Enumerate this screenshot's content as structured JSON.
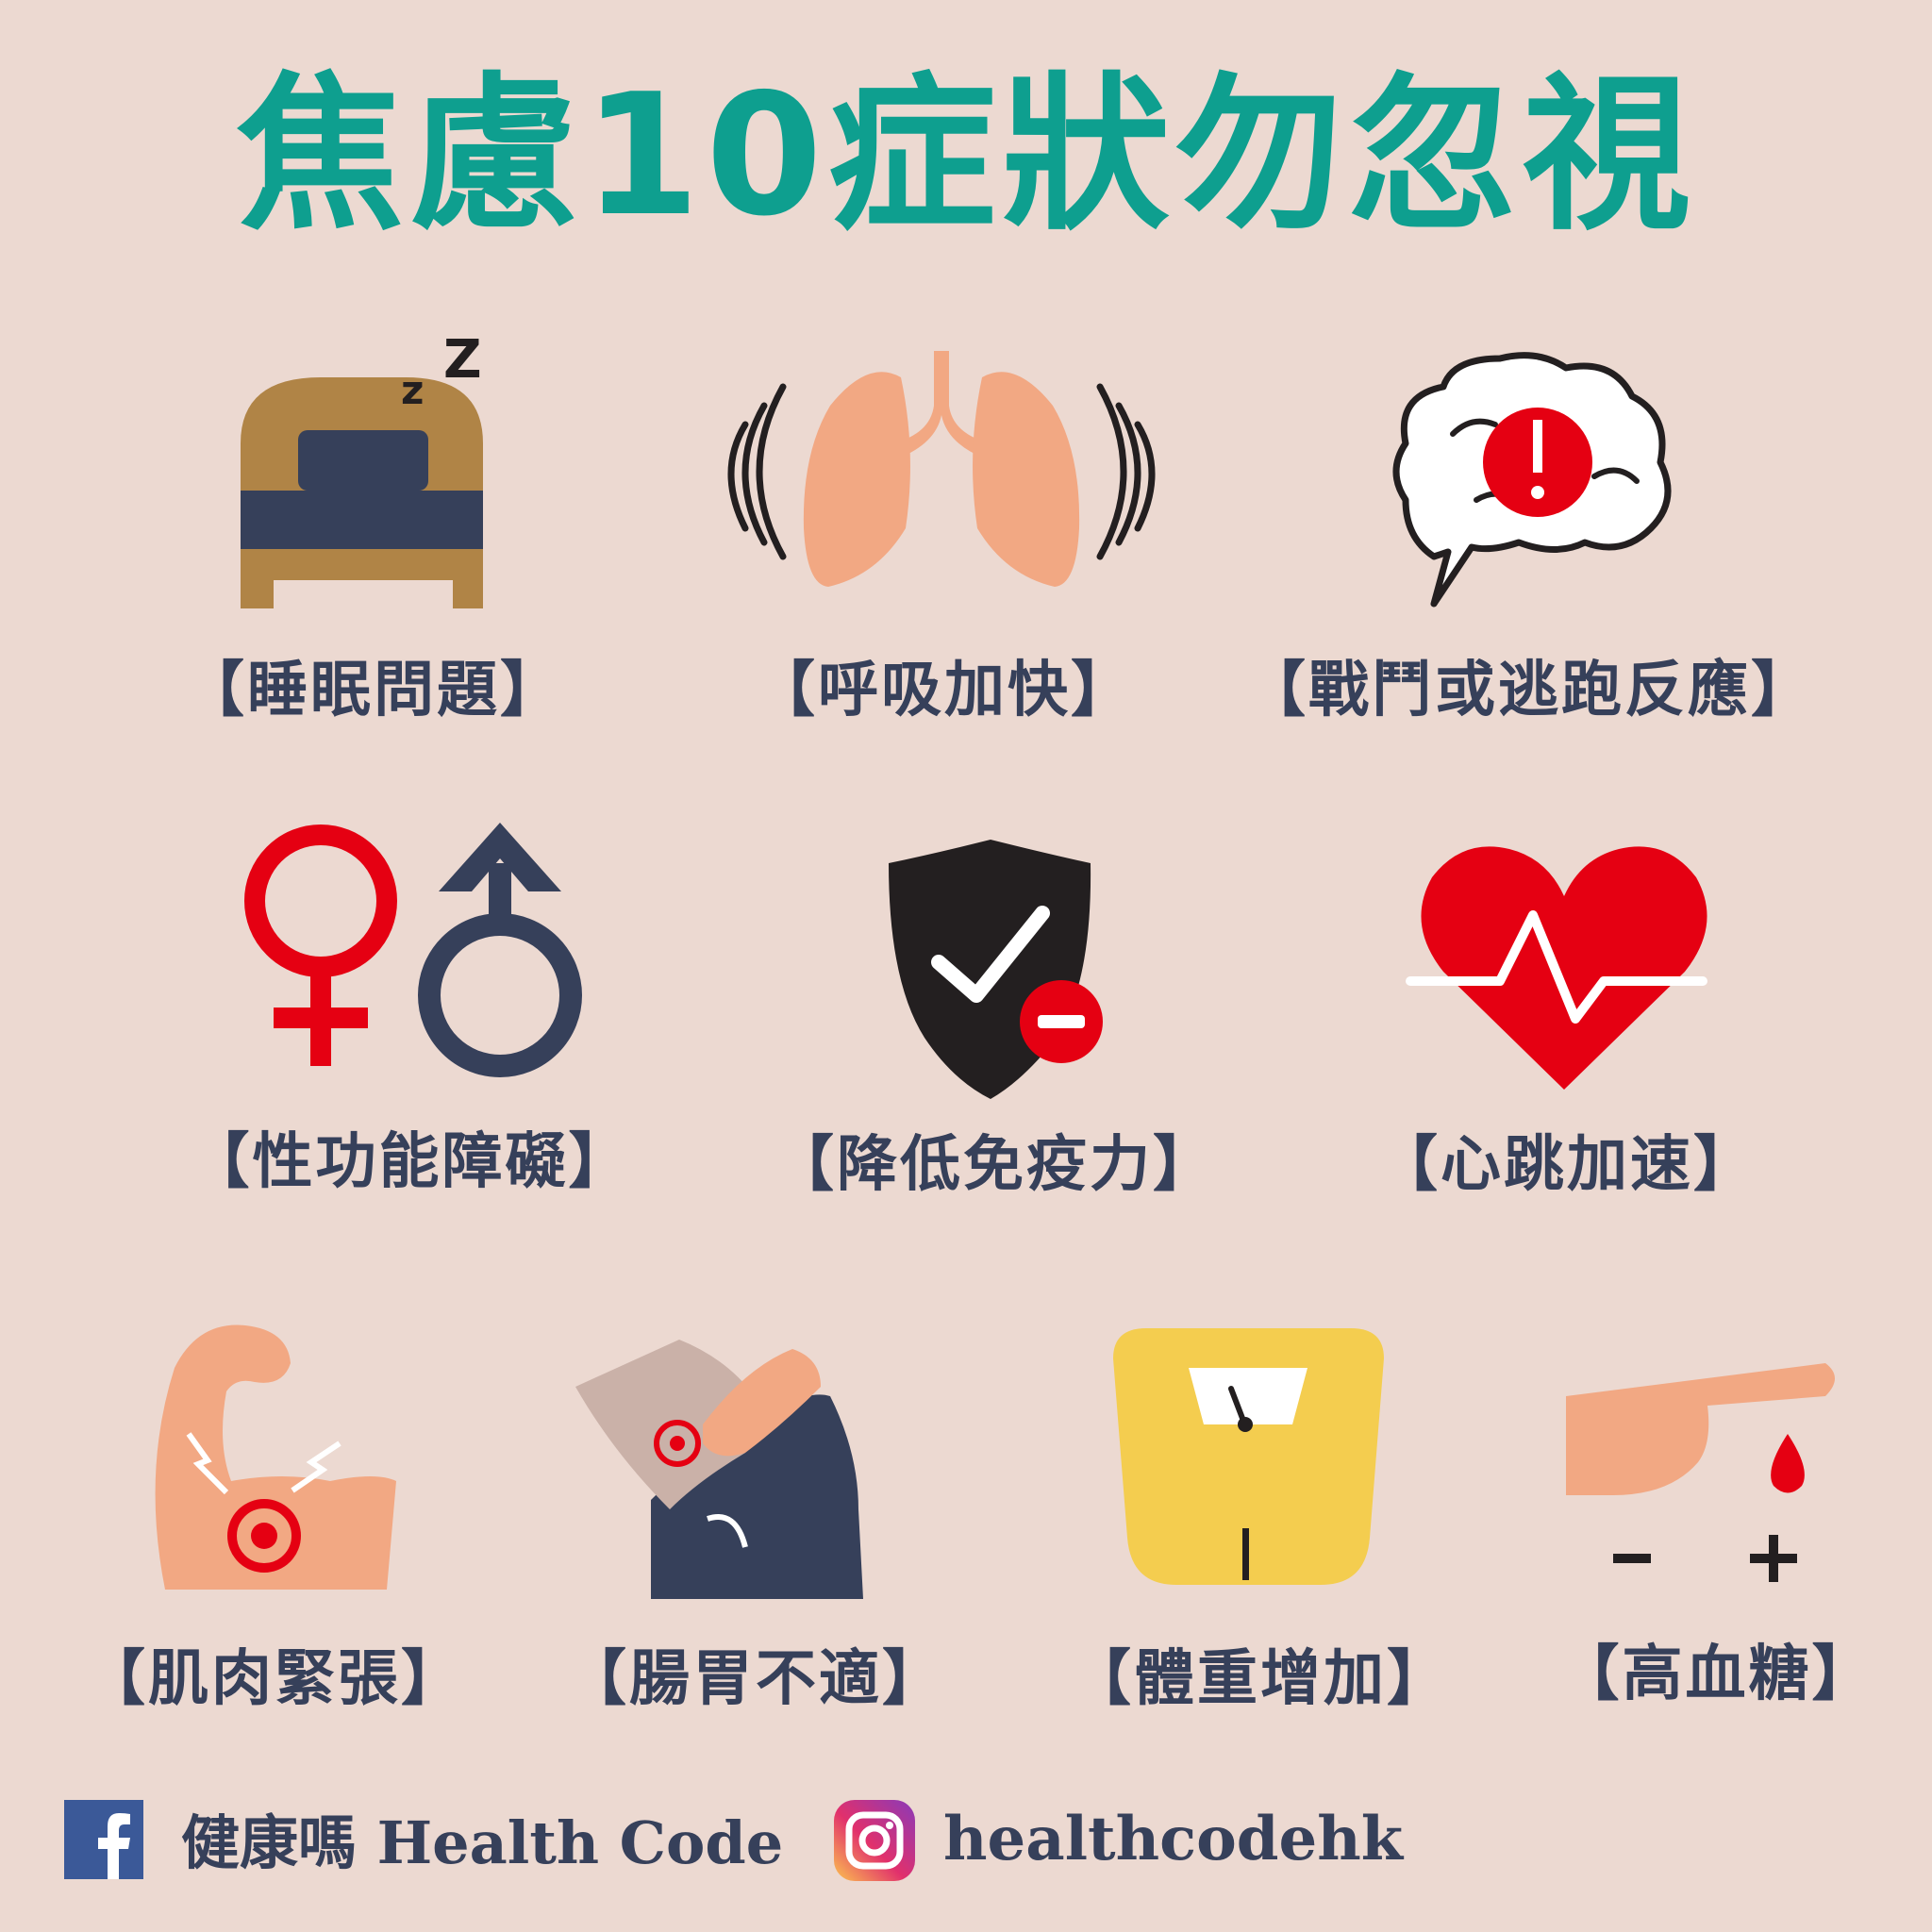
{
  "title": "焦慮10症狀勿忽視",
  "symptoms": [
    {
      "label": "【睡眠問題】",
      "icon": "bed-sleep-icon"
    },
    {
      "label": "【呼吸加快】",
      "icon": "lungs-icon"
    },
    {
      "label": "【戰鬥或逃跑反應】",
      "icon": "brain-alert-icon"
    },
    {
      "label": "【性功能障礙】",
      "icon": "gender-symbols-icon"
    },
    {
      "label": "【降低免疫力】",
      "icon": "shield-minus-icon"
    },
    {
      "label": "【心跳加速】",
      "icon": "heartbeat-icon"
    },
    {
      "label": "【肌肉緊張】",
      "icon": "muscle-pain-icon"
    },
    {
      "label": "【腸胃不適】",
      "icon": "stomach-pain-icon"
    },
    {
      "label": "【體重增加】",
      "icon": "weight-scale-icon"
    },
    {
      "label": "【高血糖】",
      "icon": "blood-sugar-icon"
    }
  ],
  "footer": {
    "facebook_name": "健康嗎 Health Code",
    "instagram_handle": "healthcodehk"
  },
  "colors": {
    "background": "#ecd9d1",
    "title": "#0e9f8f",
    "label": "#36405a",
    "red": "#e50012",
    "navy": "#36405a",
    "skin": "#f2a883"
  }
}
